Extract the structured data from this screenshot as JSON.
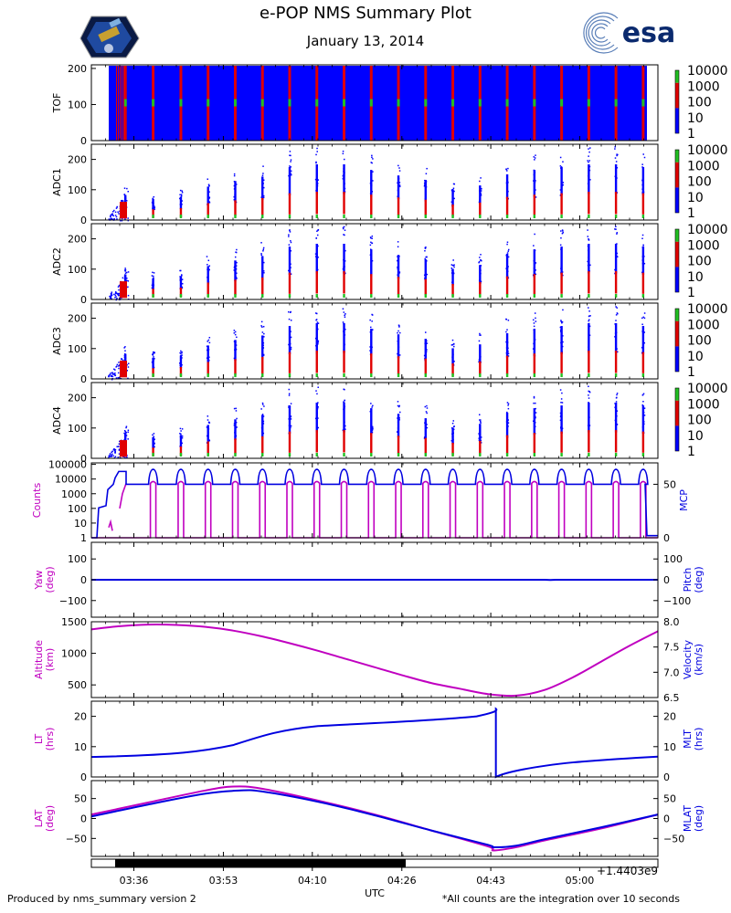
{
  "header": {
    "title": "e-POP NMS Summary Plot",
    "date": "January 13, 2014",
    "esa_logo_text": "esa"
  },
  "footer": {
    "left": "Produced by nms_summary version 2",
    "right": "*All counts are the integration over 10 seconds"
  },
  "xaxis": {
    "ticks": [
      "03:36",
      "03:53",
      "04:10",
      "04:26",
      "04:43",
      "05:00"
    ],
    "label": "UTC",
    "offset_text": "+1.4403e9"
  },
  "colors": {
    "magenta": "#c000c0",
    "blue": "#0000e0",
    "spec_blue": "#0000ff",
    "spec_red": "#e00000",
    "spec_green": "#22c022"
  },
  "colorbar": {
    "labels": [
      "10000",
      "1000",
      "100",
      "10",
      "1"
    ]
  },
  "spectrogram_panels": [
    {
      "ylabel": "TOF",
      "yticks": [
        "200",
        "100",
        "0"
      ]
    },
    {
      "ylabel": "ADC1",
      "yticks": [
        "200",
        "100",
        "0"
      ]
    },
    {
      "ylabel": "ADC2",
      "yticks": [
        "200",
        "100",
        "0"
      ]
    },
    {
      "ylabel": "ADC3",
      "yticks": [
        "200",
        "100",
        "0"
      ]
    },
    {
      "ylabel": "ADC4",
      "yticks": [
        "200",
        "100",
        "0"
      ]
    }
  ],
  "chart_data": [
    {
      "type": "heatmap",
      "panel": "TOF",
      "ylabel": "TOF",
      "ylim": [
        0,
        210
      ],
      "colorscale_log": [
        1,
        10000
      ],
      "burst_count": 20,
      "note_bursts_at_fraction_of_time": [
        0.06,
        0.109,
        0.158,
        0.206,
        0.254,
        0.302,
        0.35,
        0.398,
        0.446,
        0.494,
        0.542,
        0.59,
        0.638,
        0.686,
        0.734,
        0.782,
        0.83,
        0.878,
        0.926,
        0.974
      ]
    },
    {
      "type": "line",
      "panel": "Counts/MCP",
      "left_axis": {
        "label": "Counts",
        "scale": "log",
        "ticks": [
          "100000",
          "10000",
          "1000",
          "100",
          "10",
          "1"
        ]
      },
      "right_axis": {
        "label": "MCP",
        "ticks": [
          "50",
          "0"
        ]
      },
      "series": [
        {
          "name": "Counts",
          "color": "magenta",
          "baseline": 1,
          "pulse_peak": 5000
        },
        {
          "name": "MCP",
          "color": "blue",
          "baseline": 42,
          "peak": 62
        }
      ]
    },
    {
      "type": "line",
      "panel": "Yaw/Pitch",
      "left_axis": {
        "label": "Yaw",
        "unit": "(deg)",
        "ticks": [
          "100",
          "0",
          "−100"
        ],
        "ylim": [
          -180,
          180
        ]
      },
      "right_axis": {
        "label": "Pitch",
        "unit": "(deg)",
        "ticks": [
          "100",
          "0",
          "−100"
        ],
        "ylim": [
          -180,
          180
        ]
      },
      "series": [
        {
          "name": "Yaw",
          "color": "blue",
          "x": [
            0,
            1
          ],
          "y": [
            0,
            0
          ]
        }
      ]
    },
    {
      "type": "line",
      "panel": "Altitude/Velocity",
      "left_axis": {
        "label": "Altitude",
        "unit": "(km)",
        "ticks": [
          "1500",
          "1000",
          "500"
        ],
        "ylim": [
          300,
          1500
        ]
      },
      "right_axis": {
        "label": "Velocity",
        "unit": "(km/s)",
        "ticks": [
          "8.0",
          "7.5",
          "7.0",
          "6.5"
        ],
        "ylim": [
          6.5,
          8.0
        ]
      },
      "series": [
        {
          "name": "Altitude",
          "color": "magenta",
          "x": [
            0.0,
            0.05,
            0.1,
            0.15,
            0.2,
            0.25,
            0.3,
            0.35,
            0.4,
            0.45,
            0.5,
            0.55,
            0.6,
            0.65,
            0.7,
            0.75,
            0.8,
            0.85,
            0.9,
            0.95,
            1.0
          ],
          "y": [
            1380,
            1430,
            1455,
            1450,
            1420,
            1360,
            1270,
            1160,
            1040,
            910,
            780,
            650,
            530,
            440,
            355,
            330,
            420,
            620,
            870,
            1120,
            1350
          ]
        }
      ]
    },
    {
      "type": "line",
      "panel": "LT/MLT",
      "left_axis": {
        "label": "LT",
        "unit": "(hrs)",
        "ticks": [
          "20",
          "10",
          "0"
        ],
        "ylim": [
          0,
          25
        ]
      },
      "right_axis": {
        "label": "MLT",
        "unit": "(hrs)",
        "ticks": [
          "20",
          "10",
          "0"
        ],
        "ylim": [
          0,
          25
        ]
      },
      "series": [
        {
          "name": "MLT",
          "color": "blue",
          "x": [
            0.0,
            0.1,
            0.2,
            0.25,
            0.3,
            0.35,
            0.4,
            0.5,
            0.6,
            0.7,
            0.75,
            0.7,
            0.7,
            0.72,
            0.76,
            0.8,
            0.9,
            1.0
          ],
          "y": [
            6.6,
            7.2,
            8.5,
            10.0,
            13.5,
            16.0,
            17.0,
            18.0,
            19.0,
            20.5,
            22.0,
            0.0,
            23.0,
            0.5,
            2.5,
            4.0,
            5.8,
            6.8
          ]
        }
      ]
    },
    {
      "type": "line",
      "panel": "LAT/MLAT",
      "left_axis": {
        "label": "LAT",
        "unit": "(deg)",
        "ticks": [
          "50",
          "0",
          "−50"
        ],
        "ylim": [
          -95,
          95
        ]
      },
      "right_axis": {
        "label": "MLAT",
        "unit": "(deg)",
        "ticks": [
          "50",
          "0",
          "−50"
        ],
        "ylim": [
          -95,
          95
        ]
      },
      "series": [
        {
          "name": "LAT",
          "color": "magenta",
          "x": [
            0.0,
            0.1,
            0.2,
            0.25,
            0.3,
            0.4,
            0.5,
            0.6,
            0.7,
            0.71,
            0.75,
            0.8,
            0.9,
            1.0
          ],
          "y": [
            10,
            40,
            70,
            80,
            75,
            45,
            10,
            -30,
            -70,
            -80,
            -72,
            -55,
            -25,
            10
          ]
        },
        {
          "name": "MLAT",
          "color": "blue",
          "x": [
            0.0,
            0.1,
            0.2,
            0.26,
            0.3,
            0.4,
            0.5,
            0.6,
            0.7,
            0.71,
            0.75,
            0.8,
            0.9,
            1.0
          ],
          "y": [
            5,
            35,
            62,
            70,
            68,
            42,
            8,
            -30,
            -66,
            -72,
            -68,
            -52,
            -22,
            10
          ]
        }
      ]
    }
  ]
}
